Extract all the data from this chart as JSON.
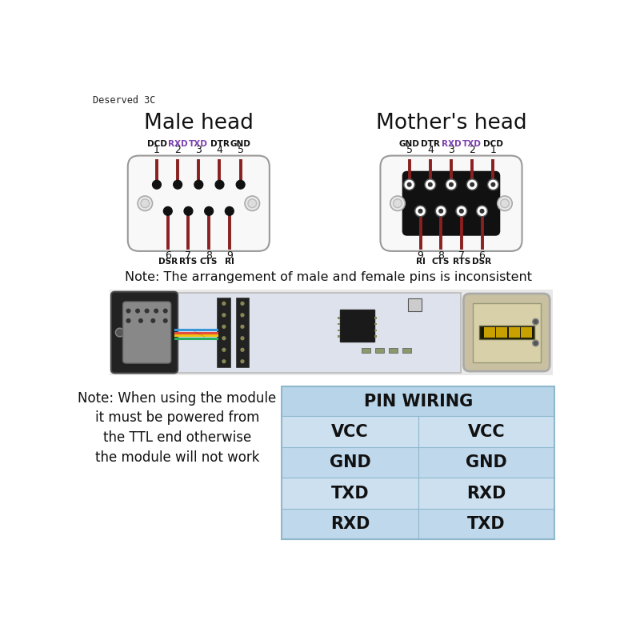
{
  "title_watermark": "Deserved 3C",
  "bg_color": "#ffffff",
  "male_head_title": "Male head",
  "female_head_title": "Mother's head",
  "male_top_labels": [
    "DCD",
    "RXD",
    "TXD",
    "DTR",
    "GND"
  ],
  "male_top_nums": [
    "1",
    "2",
    "3",
    "4",
    "5"
  ],
  "male_bot_nums": [
    "6",
    "7",
    "8",
    "9"
  ],
  "male_bot_labels": [
    "DSR",
    "RTS",
    "CTS",
    "RI"
  ],
  "female_top_labels": [
    "GND",
    "DTR",
    "RXD",
    "TXD",
    "DCD"
  ],
  "female_top_nums": [
    "5",
    "4",
    "3",
    "2",
    "1"
  ],
  "female_bot_nums": [
    "9",
    "8",
    "7",
    "6"
  ],
  "female_bot_labels": [
    "RI",
    "CTS",
    "RTS",
    "DSR"
  ],
  "note1": "Note: The arrangement of male and female pins is inconsistent",
  "note2_lines": [
    "Note: When using the module",
    "it must be powered from",
    "the TTL end otherwise",
    "the module will not work"
  ],
  "pin_wiring_title": "PIN WIRING",
  "pin_wiring_rows": [
    [
      "VCC",
      "VCC"
    ],
    [
      "GND",
      "GND"
    ],
    [
      "TXD",
      "RXD"
    ],
    [
      "RXD",
      "TXD"
    ]
  ],
  "table_header_color": "#b8d4e8",
  "table_row_color_a": "#cce0f0",
  "table_row_color_b": "#c0d8ec",
  "table_border_color": "#90b8cc",
  "line_color": "#8b2020",
  "dot_color": "#111111",
  "male_label_colors": [
    "#111111",
    "#7b3fb0",
    "#7b3fb0",
    "#111111",
    "#111111"
  ],
  "female_label_colors": [
    "#111111",
    "#111111",
    "#7b3fb0",
    "#7b3fb0",
    "#111111"
  ],
  "connector_fill_male": "#f8f8f8",
  "connector_fill_female": "#f8f8f8",
  "connector_inner_female": "#111111",
  "screw_fill": "#e8e8e8",
  "pcb_bg": "#e8e8e8",
  "pcb_board_fill": "#d8dde8"
}
